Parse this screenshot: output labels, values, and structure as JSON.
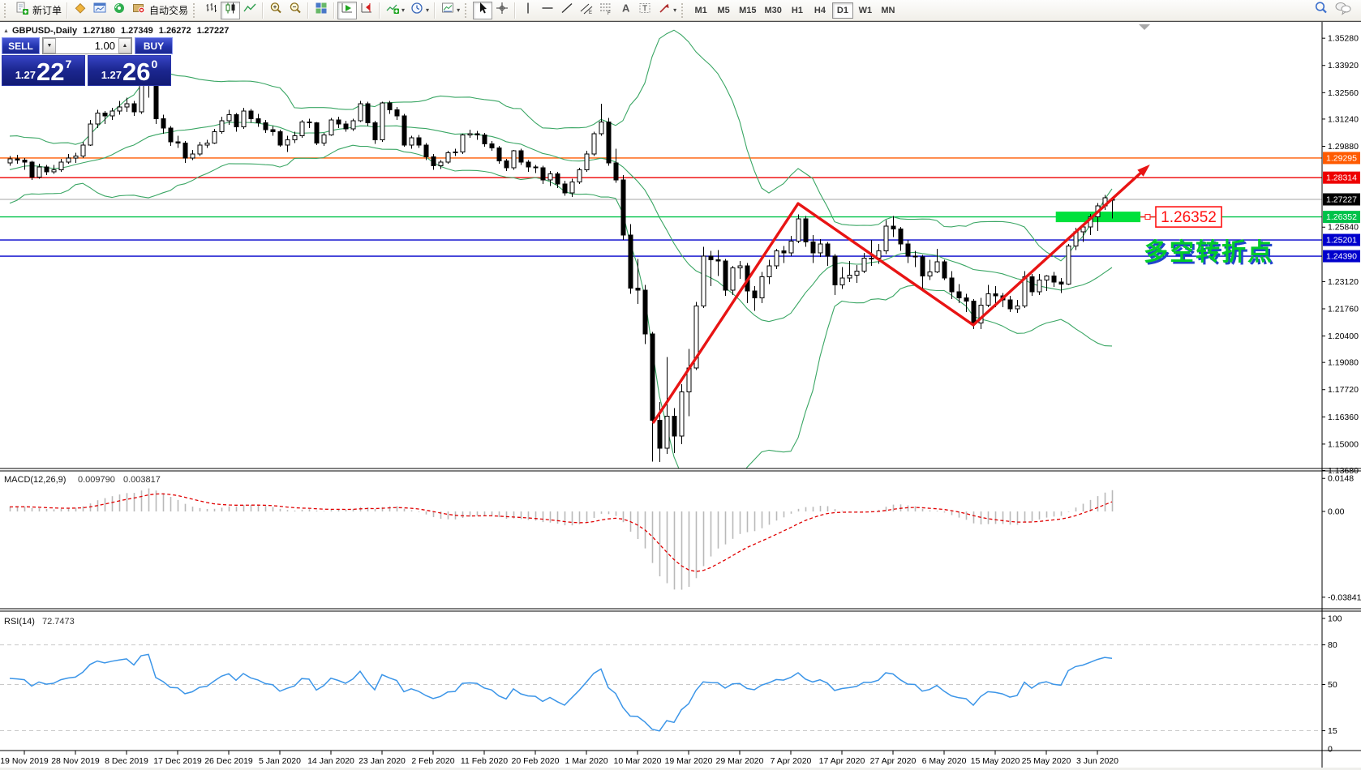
{
  "toolbar": {
    "new_order_label": "新订单",
    "autotrading_label": "自动交易",
    "timeframes": [
      "M1",
      "M5",
      "M15",
      "M30",
      "H1",
      "H4",
      "D1",
      "W1",
      "MN"
    ],
    "active_timeframe": "D1"
  },
  "trade_panel": {
    "sell_label": "SELL",
    "buy_label": "BUY",
    "volume": "1.00",
    "sell_price_small": "1.27",
    "sell_price_big": "22",
    "sell_price_sup": "7",
    "buy_price_small": "1.27",
    "buy_price_big": "26",
    "buy_price_sup": "0"
  },
  "chart_header": {
    "title": "GBPUSD-,Daily",
    "open": "1.27180",
    "high": "1.27349",
    "low": "1.26272",
    "close": "1.27227"
  },
  "indicators": {
    "macd_label": "MACD(12,26,9)",
    "macd_main_value": "0.009790",
    "macd_signal_value": "0.003817",
    "rsi_label": "RSI(14)",
    "rsi_value": "72.7473"
  },
  "chart_data": {
    "type": "candlestick",
    "symbol": "GBPUSD-",
    "timeframe": "Daily",
    "ohlc": {
      "open": 1.2718,
      "high": 1.27349,
      "low": 1.26272,
      "close": 1.27227
    },
    "current_price": 1.27227,
    "price_axis_ticks": [
      "1.35280",
      "1.33920",
      "1.32560",
      "1.31240",
      "1.29880",
      "1.25840",
      "1.23120",
      "1.21760",
      "1.20400",
      "1.19080",
      "1.17720",
      "1.16360",
      "1.15000",
      "1.13680"
    ],
    "horizontal_lines": [
      {
        "price": 1.29295,
        "label": "1.29295",
        "color": "#ff5a00"
      },
      {
        "price": 1.28314,
        "label": "1.28314",
        "color": "#ee0000"
      },
      {
        "price": 1.26352,
        "label": "1.26352",
        "color": "#00c24a"
      },
      {
        "price": 1.25201,
        "label": "1.25201",
        "color": "#0000cc"
      },
      {
        "price": 1.2439,
        "label": "1.24390",
        "color": "#0000cc"
      }
    ],
    "bollinger": {
      "period": 20,
      "deviation": 2,
      "color": "#3aa664"
    },
    "macd": {
      "fast": 12,
      "slow": 26,
      "signal": 9,
      "main_value": 0.00979,
      "signal_value": 0.003817,
      "axis_labels": [
        "0.0148",
        "0.00",
        "-0.038415"
      ],
      "axis_values": [
        0.0148,
        0,
        -0.038415
      ],
      "histogram_color": "#b9b9b9",
      "signal_color": "#e00000"
    },
    "rsi": {
      "period": 14,
      "value": 72.7473,
      "levels": [
        80,
        50,
        15
      ],
      "axis_labels": [
        "100",
        "80",
        "50",
        "15",
        "0"
      ],
      "axis_values": [
        100,
        80,
        50,
        15,
        0
      ],
      "color": "#3b95e8"
    },
    "date_labels": [
      "19 Nov 2019",
      "28 Nov 2019",
      "8 Dec 2019",
      "17 Dec 2019",
      "26 Dec 2019",
      "5 Jan 2020",
      "14 Jan 2020",
      "23 Jan 2020",
      "2 Feb 2020",
      "11 Feb 2020",
      "20 Feb 2020",
      "1 Mar 2020",
      "10 Mar 2020",
      "19 Mar 2020",
      "29 Mar 2020",
      "7 Apr 2020",
      "17 Apr 2020",
      "27 Apr 2020",
      "6 May 2020",
      "15 May 2020",
      "25 May 2020",
      "3 Jun 2020"
    ],
    "prehistory_closes": [
      1.278,
      1.29,
      1.298,
      1.294,
      1.285,
      1.276,
      1.272,
      1.28,
      1.292,
      1.3,
      1.296,
      1.287,
      1.278,
      1.274,
      1.282,
      1.294,
      1.301,
      1.295,
      1.286,
      1.279,
      1.285,
      1.293,
      1.289,
      1.291
    ],
    "candles": [
      [
        1.2905,
        1.294,
        1.289,
        1.2925
      ],
      [
        1.2925,
        1.2945,
        1.29,
        1.292
      ],
      [
        1.292,
        1.293,
        1.287,
        1.291
      ],
      [
        1.291,
        1.2915,
        1.282,
        1.2835
      ],
      [
        1.2835,
        1.29,
        1.2825,
        1.2885
      ],
      [
        1.2885,
        1.2895,
        1.2845,
        1.286
      ],
      [
        1.286,
        1.2895,
        1.285,
        1.287
      ],
      [
        1.287,
        1.2925,
        1.286,
        1.291
      ],
      [
        1.291,
        1.295,
        1.29,
        1.293
      ],
      [
        1.293,
        1.2955,
        1.2905,
        1.294
      ],
      [
        1.294,
        1.301,
        1.293,
        1.2995
      ],
      [
        1.2995,
        1.312,
        1.299,
        1.31
      ],
      [
        1.31,
        1.317,
        1.308,
        1.3155
      ],
      [
        1.3155,
        1.3165,
        1.31,
        1.314
      ],
      [
        1.314,
        1.318,
        1.312,
        1.3165
      ],
      [
        1.3165,
        1.3215,
        1.3145,
        1.3185
      ],
      [
        1.3185,
        1.323,
        1.316,
        1.32
      ],
      [
        1.32,
        1.3215,
        1.314,
        1.316
      ],
      [
        1.316,
        1.3335,
        1.315,
        1.33
      ],
      [
        1.33,
        1.334,
        1.323,
        1.3325
      ],
      [
        1.3325,
        1.333,
        1.31,
        1.3125
      ],
      [
        1.3125,
        1.3145,
        1.305,
        1.308
      ],
      [
        1.308,
        1.309,
        1.299,
        1.301
      ],
      [
        1.301,
        1.304,
        1.298,
        1.3005
      ],
      [
        1.3005,
        1.3015,
        1.2905,
        1.293
      ],
      [
        1.293,
        1.297,
        1.292,
        1.295
      ],
      [
        1.295,
        1.301,
        1.294,
        1.2995
      ],
      [
        1.2995,
        1.302,
        1.298,
        1.3005
      ],
      [
        1.3005,
        1.3075,
        1.3,
        1.306
      ],
      [
        1.306,
        1.3135,
        1.305,
        1.3115
      ],
      [
        1.3115,
        1.317,
        1.3095,
        1.3145
      ],
      [
        1.3145,
        1.3155,
        1.306,
        1.3085
      ],
      [
        1.3085,
        1.318,
        1.3075,
        1.3165
      ],
      [
        1.3165,
        1.3175,
        1.3105,
        1.3125
      ],
      [
        1.3125,
        1.315,
        1.3085,
        1.3105
      ],
      [
        1.3105,
        1.312,
        1.3055,
        1.307
      ],
      [
        1.307,
        1.309,
        1.304,
        1.306
      ],
      [
        1.306,
        1.307,
        1.2985,
        1.2995
      ],
      [
        1.2995,
        1.304,
        1.296,
        1.302
      ],
      [
        1.302,
        1.306,
        1.3005,
        1.304
      ],
      [
        1.304,
        1.312,
        1.303,
        1.311
      ],
      [
        1.311,
        1.3125,
        1.308,
        1.3105
      ],
      [
        1.3105,
        1.311,
        1.2995,
        1.3005
      ],
      [
        1.3005,
        1.3055,
        1.299,
        1.3045
      ],
      [
        1.3045,
        1.313,
        1.304,
        1.312
      ],
      [
        1.312,
        1.3135,
        1.308,
        1.31
      ],
      [
        1.31,
        1.3115,
        1.306,
        1.3075
      ],
      [
        1.3075,
        1.3125,
        1.3065,
        1.3115
      ],
      [
        1.3115,
        1.3215,
        1.311,
        1.32
      ],
      [
        1.32,
        1.321,
        1.309,
        1.3105
      ],
      [
        1.3105,
        1.3115,
        1.3,
        1.302
      ],
      [
        1.302,
        1.321,
        1.301,
        1.3205
      ],
      [
        1.3205,
        1.3215,
        1.315,
        1.317
      ],
      [
        1.317,
        1.3185,
        1.312,
        1.314
      ],
      [
        1.314,
        1.315,
        1.2985,
        1.2995
      ],
      [
        1.2995,
        1.304,
        1.2975,
        1.303
      ],
      [
        1.303,
        1.3045,
        1.298,
        1.2995
      ],
      [
        1.2995,
        1.3005,
        1.292,
        1.2935
      ],
      [
        1.2935,
        1.295,
        1.287,
        1.289
      ],
      [
        1.289,
        1.292,
        1.2875,
        1.291
      ],
      [
        1.291,
        1.2965,
        1.29,
        1.2955
      ],
      [
        1.2955,
        1.2975,
        1.294,
        1.296
      ],
      [
        1.296,
        1.305,
        1.295,
        1.3045
      ],
      [
        1.3045,
        1.307,
        1.303,
        1.305
      ],
      [
        1.305,
        1.3065,
        1.302,
        1.3045
      ],
      [
        1.3045,
        1.3055,
        1.2985,
        1.3
      ],
      [
        1.3,
        1.3015,
        1.2965,
        1.298
      ],
      [
        1.298,
        1.299,
        1.29,
        1.2915
      ],
      [
        1.2915,
        1.2925,
        1.2865,
        1.288
      ],
      [
        1.288,
        1.297,
        1.287,
        1.2965
      ],
      [
        1.2965,
        1.2975,
        1.2895,
        1.291
      ],
      [
        1.291,
        1.292,
        1.286,
        1.2885
      ],
      [
        1.2885,
        1.2895,
        1.2855,
        1.288
      ],
      [
        1.288,
        1.289,
        1.28,
        1.282
      ],
      [
        1.282,
        1.2865,
        1.279,
        1.285
      ],
      [
        1.285,
        1.286,
        1.278,
        1.28
      ],
      [
        1.28,
        1.2815,
        1.274,
        1.2755
      ],
      [
        1.2755,
        1.2825,
        1.2735,
        1.281
      ],
      [
        1.281,
        1.288,
        1.28,
        1.287
      ],
      [
        1.287,
        1.2965,
        1.286,
        1.295
      ],
      [
        1.295,
        1.306,
        1.294,
        1.305
      ],
      [
        1.305,
        1.32,
        1.304,
        1.311
      ],
      [
        1.311,
        1.313,
        1.289,
        1.2905
      ],
      [
        1.2905,
        1.2975,
        1.2805,
        1.282
      ],
      [
        1.282,
        1.2845,
        1.252,
        1.2545
      ],
      [
        1.2545,
        1.26,
        1.225,
        1.228
      ],
      [
        1.228,
        1.2425,
        1.22,
        1.227
      ],
      [
        1.227,
        1.2295,
        1.2,
        1.205
      ],
      [
        1.205,
        1.206,
        1.1412,
        1.162
      ],
      [
        1.162,
        1.171,
        1.141,
        1.148
      ],
      [
        1.148,
        1.1935,
        1.145,
        1.164
      ],
      [
        1.164,
        1.168,
        1.1455,
        1.154
      ],
      [
        1.154,
        1.18,
        1.15,
        1.176
      ],
      [
        1.176,
        1.1975,
        1.164,
        1.188
      ],
      [
        1.188,
        1.221,
        1.187,
        1.219
      ],
      [
        1.219,
        1.2485,
        1.218,
        1.244
      ],
      [
        1.244,
        1.2465,
        1.229,
        1.242
      ],
      [
        1.242,
        1.247,
        1.234,
        1.2415
      ],
      [
        1.2415,
        1.2425,
        1.224,
        1.227
      ],
      [
        1.227,
        1.239,
        1.2245,
        1.238
      ],
      [
        1.238,
        1.2415,
        1.2325,
        1.239
      ],
      [
        1.239,
        1.2405,
        1.2205,
        1.2265
      ],
      [
        1.2265,
        1.229,
        1.2165,
        1.223
      ],
      [
        1.223,
        1.236,
        1.2205,
        1.2335
      ],
      [
        1.2335,
        1.242,
        1.23,
        1.239
      ],
      [
        1.239,
        1.2475,
        1.2375,
        1.2465
      ],
      [
        1.2465,
        1.249,
        1.2405,
        1.2455
      ],
      [
        1.2455,
        1.254,
        1.244,
        1.2515
      ],
      [
        1.2515,
        1.2648,
        1.2505,
        1.2625
      ],
      [
        1.2625,
        1.264,
        1.2485,
        1.251
      ],
      [
        1.251,
        1.2545,
        1.2405,
        1.2455
      ],
      [
        1.2455,
        1.2525,
        1.2435,
        1.25
      ],
      [
        1.25,
        1.251,
        1.239,
        1.244
      ],
      [
        1.244,
        1.245,
        1.2245,
        1.2295
      ],
      [
        1.2295,
        1.2385,
        1.2275,
        1.233
      ],
      [
        1.233,
        1.2415,
        1.231,
        1.2345
      ],
      [
        1.2345,
        1.2395,
        1.2305,
        1.2365
      ],
      [
        1.2365,
        1.2455,
        1.2355,
        1.243
      ],
      [
        1.243,
        1.252,
        1.239,
        1.243
      ],
      [
        1.243,
        1.25,
        1.24,
        1.2465
      ],
      [
        1.2465,
        1.262,
        1.245,
        1.259
      ],
      [
        1.259,
        1.264,
        1.2535,
        1.2575
      ],
      [
        1.2575,
        1.2585,
        1.2465,
        1.25
      ],
      [
        1.25,
        1.252,
        1.2405,
        1.244
      ],
      [
        1.244,
        1.2465,
        1.2385,
        1.2435
      ],
      [
        1.2435,
        1.2445,
        1.2265,
        1.234
      ],
      [
        1.234,
        1.242,
        1.232,
        1.236
      ],
      [
        1.236,
        1.2475,
        1.2355,
        1.241
      ],
      [
        1.241,
        1.242,
        1.232,
        1.233
      ],
      [
        1.233,
        1.2365,
        1.2225,
        1.226
      ],
      [
        1.226,
        1.23,
        1.2205,
        1.223
      ],
      [
        1.223,
        1.225,
        1.216,
        1.2215
      ],
      [
        1.2215,
        1.2225,
        1.2075,
        1.2105
      ],
      [
        1.2105,
        1.223,
        1.2075,
        1.2195
      ],
      [
        1.2195,
        1.2295,
        1.2185,
        1.225
      ],
      [
        1.225,
        1.229,
        1.2185,
        1.224
      ],
      [
        1.224,
        1.2255,
        1.2185,
        1.222
      ],
      [
        1.222,
        1.224,
        1.216,
        1.2175
      ],
      [
        1.2175,
        1.222,
        1.2155,
        1.219
      ],
      [
        1.219,
        1.2365,
        1.218,
        1.2335
      ],
      [
        1.2335,
        1.235,
        1.224,
        1.226
      ],
      [
        1.226,
        1.235,
        1.2245,
        1.232
      ],
      [
        1.232,
        1.2345,
        1.2265,
        1.234
      ],
      [
        1.234,
        1.236,
        1.2285,
        1.231
      ],
      [
        1.231,
        1.233,
        1.2255,
        1.23
      ],
      [
        1.23,
        1.25,
        1.2295,
        1.249
      ],
      [
        1.249,
        1.258,
        1.247,
        1.256
      ],
      [
        1.256,
        1.26,
        1.251,
        1.2585
      ],
      [
        1.2585,
        1.265,
        1.2545,
        1.2635
      ],
      [
        1.2635,
        1.2705,
        1.2565,
        1.269
      ],
      [
        1.269,
        1.2745,
        1.267,
        1.273
      ],
      [
        1.2718,
        1.27349,
        1.26272,
        1.27227
      ]
    ],
    "trend_arrows": [
      {
        "from": {
          "i": 88.2,
          "price": 1.1609
        },
        "to": {
          "i": 108,
          "price": 1.2702
        },
        "color": "#e81414",
        "arrow": false
      },
      {
        "from": {
          "i": 108,
          "price": 1.2702
        },
        "to": {
          "i": 132,
          "price": 1.2095
        },
        "color": "#e81414",
        "arrow": false
      },
      {
        "from": {
          "i": 132,
          "price": 1.2095
        },
        "to": {
          "i": 156.2,
          "price": 1.2897
        },
        "color": "#e81414",
        "arrow": true
      }
    ],
    "highlight_box": {
      "i0": 143.3,
      "i1": 154.9,
      "price": 1.26352,
      "color": "#00e13c"
    },
    "price_label_annotation": {
      "text": "1.26352",
      "color": "#ff1111"
    },
    "note_annotation": {
      "text": "多空转折点",
      "color": "#00cc2a",
      "shadow": "#2244cc"
    }
  }
}
